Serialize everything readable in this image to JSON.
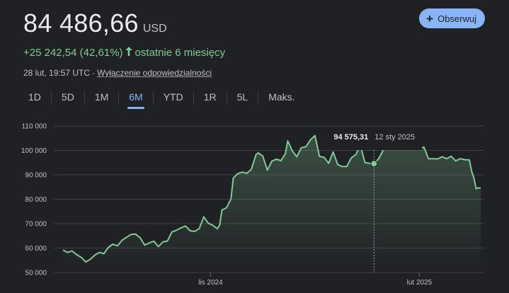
{
  "quote": {
    "price": "84 486,66",
    "currency": "USD",
    "change": "+25 242,54 (42,61%)",
    "period": "ostatnie 6 miesięcy",
    "timestamp": "28 lut, 19:57 UTC",
    "separator": "·",
    "disclaimer": "Wyłączenie odpowiedzialności"
  },
  "follow_button": {
    "label": "Obserwuj",
    "icon": "plus-icon"
  },
  "tabs": [
    {
      "label": "1D"
    },
    {
      "label": "5D"
    },
    {
      "label": "1M"
    },
    {
      "label": "6M"
    },
    {
      "label": "YTD"
    },
    {
      "label": "1R"
    },
    {
      "label": "5L"
    },
    {
      "label": "Maks."
    }
  ],
  "active_tab": "6M",
  "colors": {
    "line": "#81c995",
    "accent": "#8ab4f8",
    "background": "#202124"
  },
  "chart_data": {
    "type": "line",
    "y_ticks": [
      "110 000",
      "100 000",
      "90 000",
      "80 000",
      "70 000",
      "60 000",
      "50 000"
    ],
    "y_tick_values": [
      110000,
      100000,
      90000,
      80000,
      70000,
      60000,
      50000
    ],
    "ylim": [
      50000,
      110000
    ],
    "x_ticks": [
      {
        "label": "lis 2024",
        "date": "2024-11-01"
      },
      {
        "label": "lut 2025",
        "date": "2025-02-01"
      }
    ],
    "xlim": [
      "2024-08-28",
      "2025-02-28"
    ],
    "grid": true,
    "tooltip": {
      "value": "94 575,31",
      "date": "12 sty 2025",
      "x": "2025-01-12",
      "y": 94575.31
    },
    "series": [
      {
        "points": [
          [
            "2024-08-28",
            59200
          ],
          [
            "2024-08-30",
            58200
          ],
          [
            "2024-09-01",
            58800
          ],
          [
            "2024-09-03",
            57300
          ],
          [
            "2024-09-05",
            56200
          ],
          [
            "2024-09-07",
            54300
          ],
          [
            "2024-09-09",
            55400
          ],
          [
            "2024-09-11",
            57100
          ],
          [
            "2024-09-13",
            58200
          ],
          [
            "2024-09-15",
            57700
          ],
          [
            "2024-09-17",
            60300
          ],
          [
            "2024-09-19",
            61600
          ],
          [
            "2024-09-21",
            60900
          ],
          [
            "2024-09-23",
            63200
          ],
          [
            "2024-09-25",
            64400
          ],
          [
            "2024-09-27",
            65600
          ],
          [
            "2024-09-29",
            65700
          ],
          [
            "2024-10-01",
            64200
          ],
          [
            "2024-10-03",
            61200
          ],
          [
            "2024-10-05",
            62100
          ],
          [
            "2024-10-07",
            62800
          ],
          [
            "2024-10-09",
            60600
          ],
          [
            "2024-10-11",
            62500
          ],
          [
            "2024-10-13",
            62900
          ],
          [
            "2024-10-15",
            66600
          ],
          [
            "2024-10-17",
            67300
          ],
          [
            "2024-10-19",
            68300
          ],
          [
            "2024-10-21",
            69000
          ],
          [
            "2024-10-23",
            67100
          ],
          [
            "2024-10-25",
            66800
          ],
          [
            "2024-10-27",
            67900
          ],
          [
            "2024-10-29",
            72800
          ],
          [
            "2024-10-31",
            70200
          ],
          [
            "2024-11-02",
            69300
          ],
          [
            "2024-11-04",
            67900
          ],
          [
            "2024-11-05",
            69400
          ],
          [
            "2024-11-06",
            75600
          ],
          [
            "2024-11-08",
            76500
          ],
          [
            "2024-11-10",
            80100
          ],
          [
            "2024-11-11",
            88700
          ],
          [
            "2024-11-13",
            90500
          ],
          [
            "2024-11-15",
            91100
          ],
          [
            "2024-11-17",
            90600
          ],
          [
            "2024-11-19",
            92300
          ],
          [
            "2024-11-21",
            98300
          ],
          [
            "2024-11-22",
            99000
          ],
          [
            "2024-11-24",
            97700
          ],
          [
            "2024-11-26",
            91900
          ],
          [
            "2024-11-28",
            95600
          ],
          [
            "2024-11-30",
            96400
          ],
          [
            "2024-12-02",
            95800
          ],
          [
            "2024-12-04",
            98700
          ],
          [
            "2024-12-05",
            103900
          ],
          [
            "2024-12-07",
            99800
          ],
          [
            "2024-12-09",
            97400
          ],
          [
            "2024-12-11",
            101100
          ],
          [
            "2024-12-13",
            101500
          ],
          [
            "2024-12-15",
            104300
          ],
          [
            "2024-12-17",
            106100
          ],
          [
            "2024-12-19",
            97500
          ],
          [
            "2024-12-21",
            97200
          ],
          [
            "2024-12-23",
            94700
          ],
          [
            "2024-12-25",
            99400
          ],
          [
            "2024-12-27",
            94200
          ],
          [
            "2024-12-29",
            93400
          ],
          [
            "2024-12-31",
            93400
          ],
          [
            "2025-01-02",
            96900
          ],
          [
            "2025-01-04",
            98300
          ],
          [
            "2025-01-06",
            102100
          ],
          [
            "2025-01-08",
            95000
          ],
          [
            "2025-01-10",
            94700
          ],
          [
            "2025-01-12",
            94575.31
          ],
          [
            "2025-01-14",
            96500
          ],
          [
            "2025-01-16",
            100000
          ],
          [
            "2025-01-18",
            104400
          ],
          [
            "2025-01-20",
            102000
          ],
          [
            "2025-01-22",
            103700
          ],
          [
            "2025-01-24",
            104700
          ],
          [
            "2025-01-26",
            102600
          ],
          [
            "2025-01-28",
            101300
          ],
          [
            "2025-01-30",
            104700
          ],
          [
            "2025-02-01",
            100600
          ],
          [
            "2025-02-03",
            101400
          ],
          [
            "2025-02-05",
            96600
          ],
          [
            "2025-02-07",
            96600
          ],
          [
            "2025-02-09",
            96500
          ],
          [
            "2025-02-11",
            97400
          ],
          [
            "2025-02-13",
            96600
          ],
          [
            "2025-02-15",
            97600
          ],
          [
            "2025-02-17",
            95700
          ],
          [
            "2025-02-19",
            96600
          ],
          [
            "2025-02-21",
            96200
          ],
          [
            "2025-02-23",
            96100
          ],
          [
            "2025-02-24",
            91500
          ],
          [
            "2025-02-25",
            88700
          ],
          [
            "2025-02-26",
            84300
          ],
          [
            "2025-02-27",
            84700
          ],
          [
            "2025-02-28",
            84486.66
          ]
        ]
      }
    ]
  }
}
